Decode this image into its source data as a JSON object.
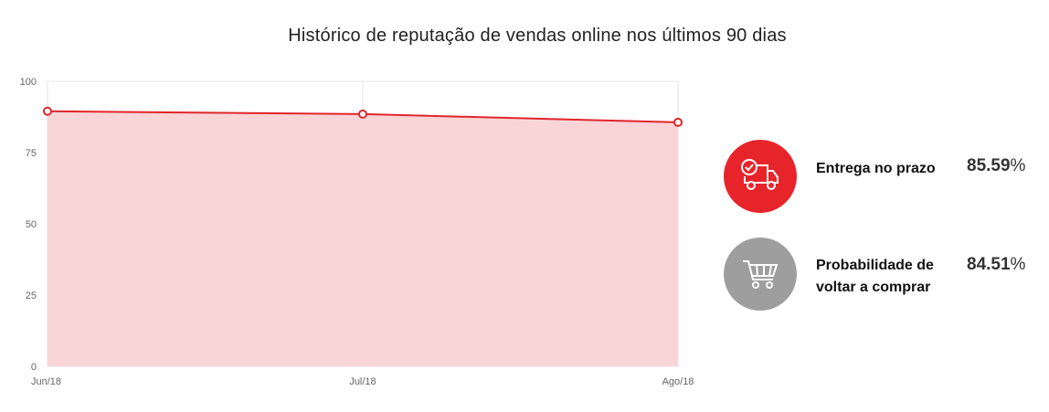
{
  "title": "Histórico de reputação de vendas online nos últimos 90 dias",
  "chart_data": {
    "type": "area",
    "categories": [
      "Jun/18",
      "Jul/18",
      "Ago/18"
    ],
    "series": [
      {
        "values": [
          89.5,
          88.5,
          85.6
        ]
      }
    ],
    "ylim": [
      0,
      100
    ],
    "yticks": [
      "100",
      "75",
      "50",
      "25",
      "0"
    ],
    "grid": true,
    "colors": {
      "line": "#e0262b",
      "fill": "#fad3d5",
      "grid": "#e6e6e6"
    }
  },
  "metrics": [
    {
      "label": "Entrega no prazo",
      "value": "85.59",
      "unit": "%",
      "icon": "delivery-truck-clock-icon",
      "color": "#e8242b"
    },
    {
      "label": "Probabilidade de voltar a comprar",
      "value": "84.51",
      "unit": "%",
      "icon": "shopping-cart-icon",
      "color": "#9e9e9e"
    }
  ]
}
